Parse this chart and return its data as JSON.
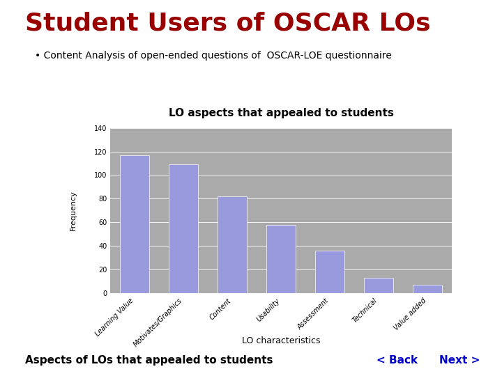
{
  "title": "Student Users of OSCAR LOs",
  "subtitle": "• Content Analysis of open-ended questions of  OSCAR-LOE questionnaire",
  "chart_title": "LO aspects that appealed to students",
  "xlabel": "LO characteristics",
  "ylabel": "Frequency",
  "categories": [
    "Learning Value",
    "Motivates/Graphics",
    "Content",
    "Usability",
    "Assessment",
    "Technical",
    "Value added"
  ],
  "values": [
    117,
    109,
    82,
    58,
    36,
    13,
    7
  ],
  "bar_color": "#9999dd",
  "plot_bg_color": "#aaaaaa",
  "ylim": [
    0,
    140
  ],
  "yticks": [
    0,
    20,
    40,
    60,
    80,
    100,
    120,
    140
  ],
  "title_color": "#990000",
  "subtitle_color": "#000000",
  "chart_title_color": "#000000",
  "bottom_label": "Aspects of LOs that appealed to students",
  "back_text": "< Back",
  "next_text": "Next >",
  "nav_color": "#0000cc",
  "bg_color": "#ffffff"
}
